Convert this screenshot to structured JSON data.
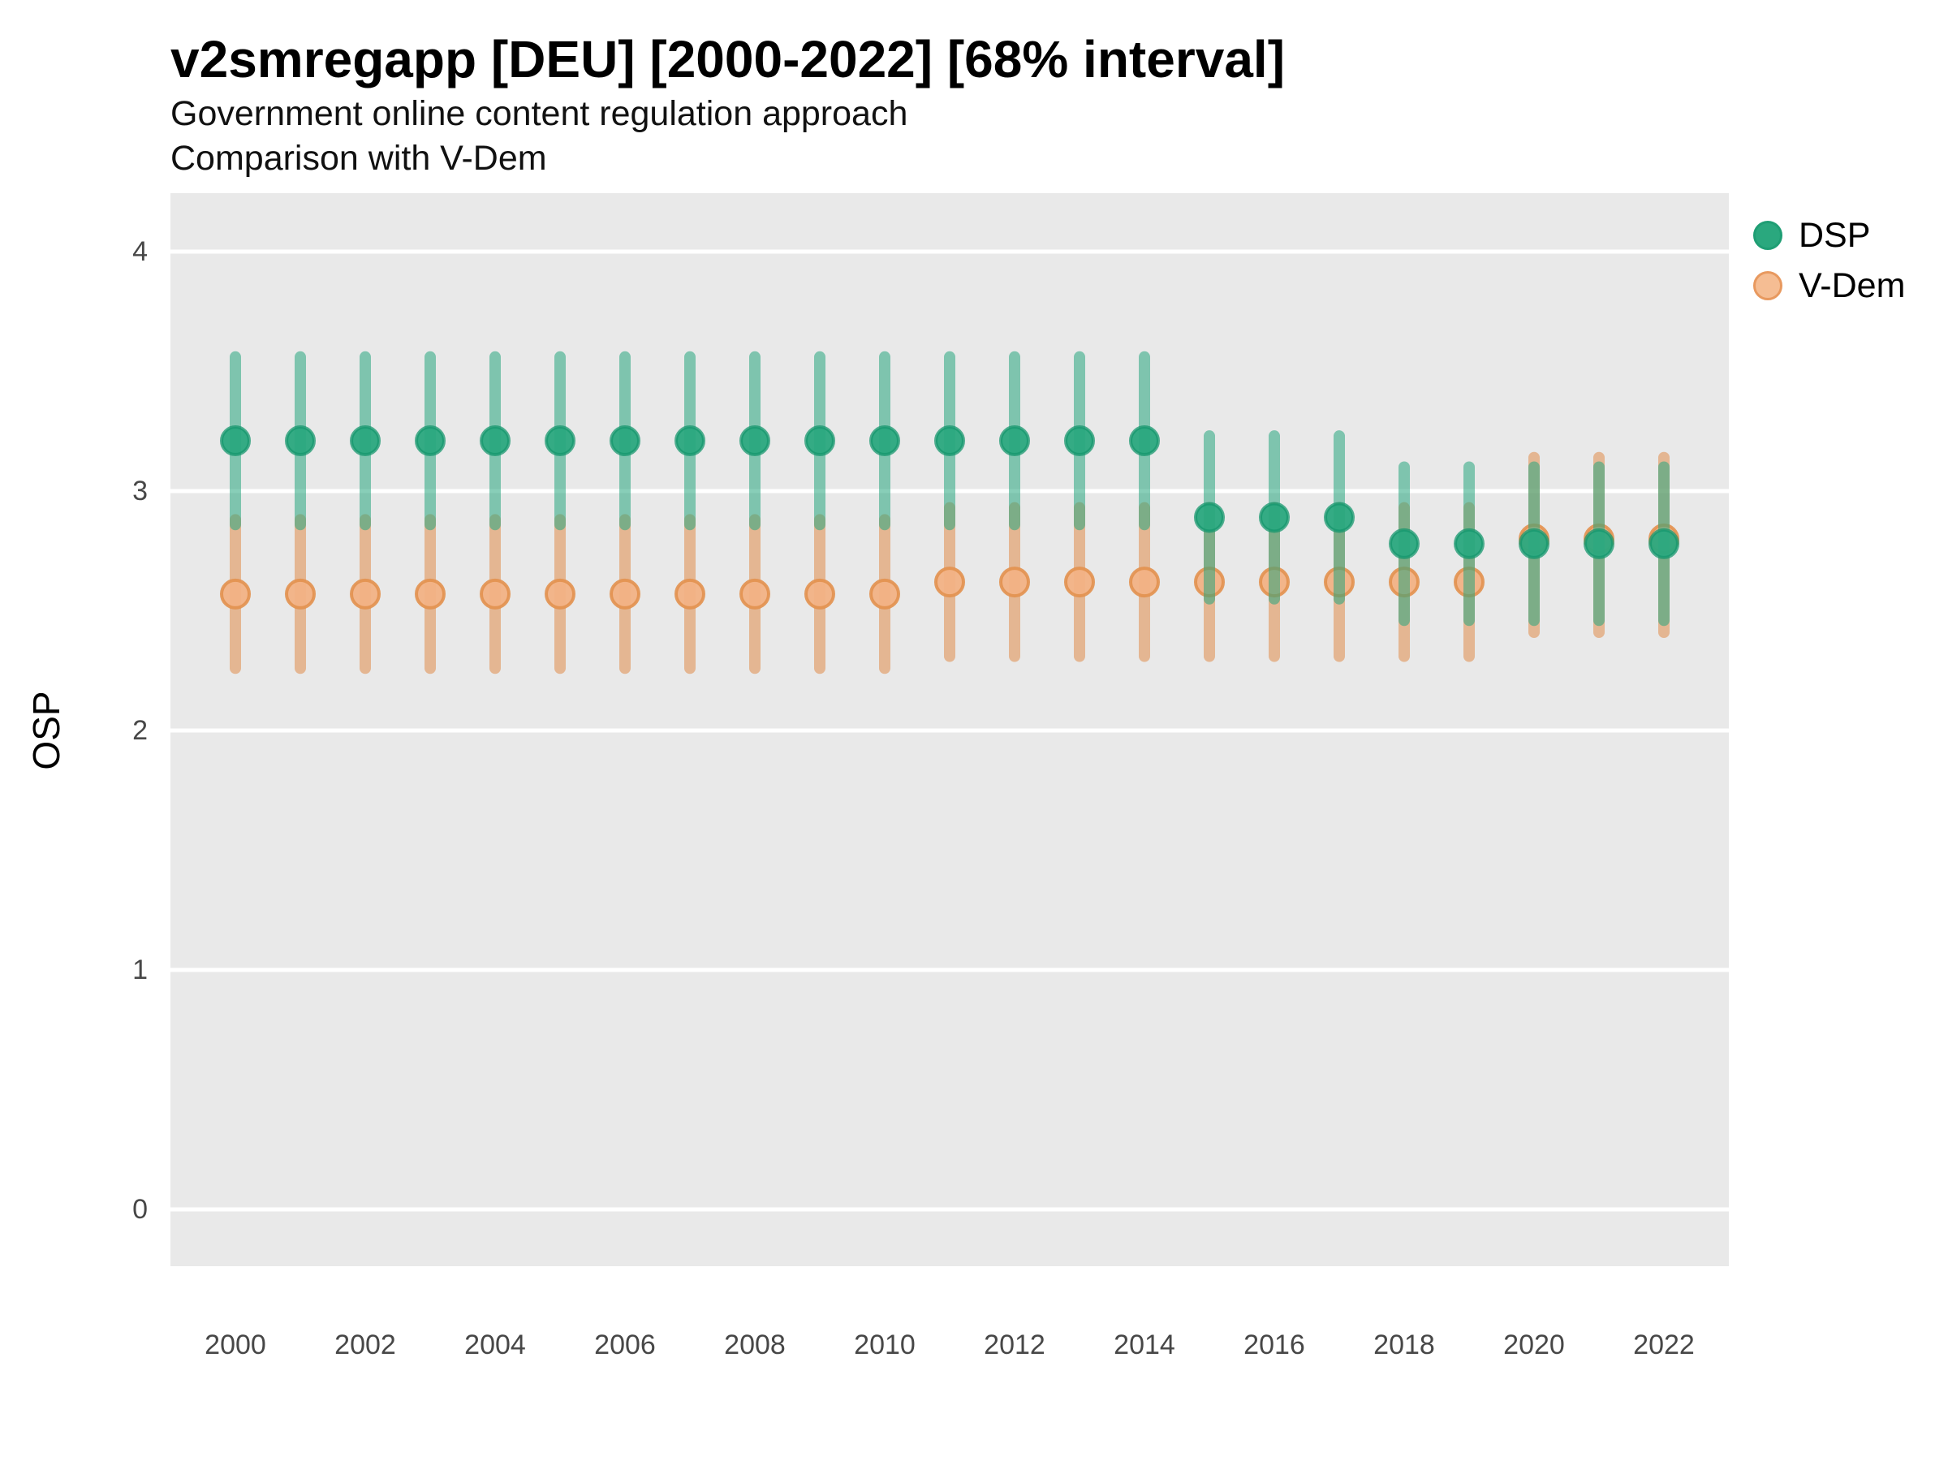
{
  "header": {
    "title": "v2smregapp [DEU] [2000-2022] [68% interval]",
    "subtitle_line1": "Government online content regulation approach",
    "subtitle_line2": "Comparison with V-Dem"
  },
  "chart_data": {
    "type": "scatter",
    "title": "v2smregapp [DEU] [2000-2022] [68% interval]",
    "subtitle": "Government online content regulation approach",
    "subtitle2": "Comparison with V-Dem",
    "variable": "v2smregapp",
    "country": "DEU",
    "interval": "68% interval",
    "xlabel": "",
    "ylabel": "OSP",
    "x_ticks": [
      2000,
      2002,
      2004,
      2006,
      2008,
      2010,
      2012,
      2014,
      2016,
      2018,
      2020,
      2022
    ],
    "y_ticks": [
      0,
      1,
      2,
      3,
      4
    ],
    "xlim": [
      1999,
      2023
    ],
    "ylim": [
      -0.24,
      4.24
    ],
    "grid": "horizontal-major-only",
    "legend_position": "right",
    "colors": {
      "panel_bg": "#e9e9e9",
      "gridline": "#ffffff",
      "axis_text": "#474747",
      "dsp_dot_fill": "#2aa87e",
      "dsp_dot_stroke": "#17976d",
      "dsp_bar": "#27a57d",
      "vdem_dot_fill": "#f2b285",
      "vdem_dot_stroke": "#e2914f",
      "vdem_bar": "#e08c4a"
    },
    "series": [
      {
        "name": "DSP",
        "points": [
          {
            "year": 2000,
            "est": 3.21,
            "lo": 2.86,
            "hi": 3.56
          },
          {
            "year": 2001,
            "est": 3.21,
            "lo": 2.86,
            "hi": 3.56
          },
          {
            "year": 2002,
            "est": 3.21,
            "lo": 2.86,
            "hi": 3.56
          },
          {
            "year": 2003,
            "est": 3.21,
            "lo": 2.86,
            "hi": 3.56
          },
          {
            "year": 2004,
            "est": 3.21,
            "lo": 2.86,
            "hi": 3.56
          },
          {
            "year": 2005,
            "est": 3.21,
            "lo": 2.86,
            "hi": 3.56
          },
          {
            "year": 2006,
            "est": 3.21,
            "lo": 2.86,
            "hi": 3.56
          },
          {
            "year": 2007,
            "est": 3.21,
            "lo": 2.86,
            "hi": 3.56
          },
          {
            "year": 2008,
            "est": 3.21,
            "lo": 2.86,
            "hi": 3.56
          },
          {
            "year": 2009,
            "est": 3.21,
            "lo": 2.86,
            "hi": 3.56
          },
          {
            "year": 2010,
            "est": 3.21,
            "lo": 2.86,
            "hi": 3.56
          },
          {
            "year": 2011,
            "est": 3.21,
            "lo": 2.86,
            "hi": 3.56
          },
          {
            "year": 2012,
            "est": 3.21,
            "lo": 2.86,
            "hi": 3.56
          },
          {
            "year": 2013,
            "est": 3.21,
            "lo": 2.86,
            "hi": 3.56
          },
          {
            "year": 2014,
            "est": 3.21,
            "lo": 2.86,
            "hi": 3.56
          },
          {
            "year": 2015,
            "est": 2.89,
            "lo": 2.55,
            "hi": 3.23
          },
          {
            "year": 2016,
            "est": 2.89,
            "lo": 2.55,
            "hi": 3.23
          },
          {
            "year": 2017,
            "est": 2.89,
            "lo": 2.55,
            "hi": 3.23
          },
          {
            "year": 2018,
            "est": 2.78,
            "lo": 2.46,
            "hi": 3.1
          },
          {
            "year": 2019,
            "est": 2.78,
            "lo": 2.46,
            "hi": 3.1
          },
          {
            "year": 2020,
            "est": 2.78,
            "lo": 2.46,
            "hi": 3.1
          },
          {
            "year": 2021,
            "est": 2.78,
            "lo": 2.46,
            "hi": 3.1
          },
          {
            "year": 2022,
            "est": 2.78,
            "lo": 2.46,
            "hi": 3.1
          }
        ]
      },
      {
        "name": "V-Dem",
        "points": [
          {
            "year": 2000,
            "est": 2.57,
            "lo": 2.26,
            "hi": 2.88
          },
          {
            "year": 2001,
            "est": 2.57,
            "lo": 2.26,
            "hi": 2.88
          },
          {
            "year": 2002,
            "est": 2.57,
            "lo": 2.26,
            "hi": 2.88
          },
          {
            "year": 2003,
            "est": 2.57,
            "lo": 2.26,
            "hi": 2.88
          },
          {
            "year": 2004,
            "est": 2.57,
            "lo": 2.26,
            "hi": 2.88
          },
          {
            "year": 2005,
            "est": 2.57,
            "lo": 2.26,
            "hi": 2.88
          },
          {
            "year": 2006,
            "est": 2.57,
            "lo": 2.26,
            "hi": 2.88
          },
          {
            "year": 2007,
            "est": 2.57,
            "lo": 2.26,
            "hi": 2.88
          },
          {
            "year": 2008,
            "est": 2.57,
            "lo": 2.26,
            "hi": 2.88
          },
          {
            "year": 2009,
            "est": 2.57,
            "lo": 2.26,
            "hi": 2.88
          },
          {
            "year": 2010,
            "est": 2.57,
            "lo": 2.26,
            "hi": 2.88
          },
          {
            "year": 2011,
            "est": 2.62,
            "lo": 2.31,
            "hi": 2.93
          },
          {
            "year": 2012,
            "est": 2.62,
            "lo": 2.31,
            "hi": 2.93
          },
          {
            "year": 2013,
            "est": 2.62,
            "lo": 2.31,
            "hi": 2.93
          },
          {
            "year": 2014,
            "est": 2.62,
            "lo": 2.31,
            "hi": 2.93
          },
          {
            "year": 2015,
            "est": 2.62,
            "lo": 2.31,
            "hi": 2.93
          },
          {
            "year": 2016,
            "est": 2.62,
            "lo": 2.31,
            "hi": 2.93
          },
          {
            "year": 2017,
            "est": 2.62,
            "lo": 2.31,
            "hi": 2.93
          },
          {
            "year": 2018,
            "est": 2.62,
            "lo": 2.31,
            "hi": 2.93
          },
          {
            "year": 2019,
            "est": 2.62,
            "lo": 2.31,
            "hi": 2.93
          },
          {
            "year": 2020,
            "est": 2.8,
            "lo": 2.41,
            "hi": 3.14
          },
          {
            "year": 2021,
            "est": 2.8,
            "lo": 2.41,
            "hi": 3.14
          },
          {
            "year": 2022,
            "est": 2.8,
            "lo": 2.41,
            "hi": 3.14
          }
        ]
      }
    ]
  },
  "legend": {
    "dsp_label": "DSP",
    "vdem_label": "V-Dem"
  }
}
